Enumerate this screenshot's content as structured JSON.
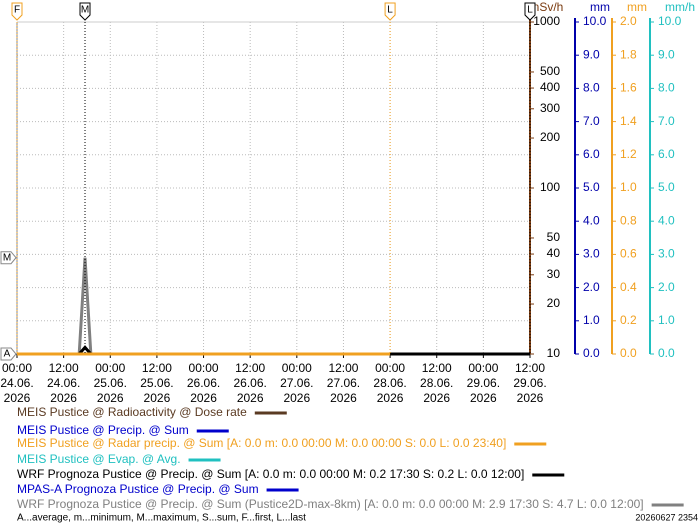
{
  "chart_data": {
    "type": "line",
    "xlim": [
      0,
      132
    ],
    "xticks": [
      {
        "value": 0,
        "label": [
          "00:00",
          "24.06.",
          "2026"
        ]
      },
      {
        "value": 12,
        "label": [
          "12:00",
          "24.06.",
          "2026"
        ]
      },
      {
        "value": 24,
        "label": [
          "00:00",
          "25.06.",
          "2026"
        ]
      },
      {
        "value": 36,
        "label": [
          "12:00",
          "25.06.",
          "2026"
        ]
      },
      {
        "value": 48,
        "label": [
          "00:00",
          "26.06.",
          "2026"
        ]
      },
      {
        "value": 60,
        "label": [
          "12:00",
          "26.06.",
          "2026"
        ]
      },
      {
        "value": 72,
        "label": [
          "00:00",
          "27.06.",
          "2026"
        ]
      },
      {
        "value": 84,
        "label": [
          "12:00",
          "27.06.",
          "2026"
        ]
      },
      {
        "value": 96,
        "label": [
          "00:00",
          "28.06.",
          "2026"
        ]
      },
      {
        "value": 108,
        "label": [
          "12:00",
          "28.06.",
          "2026"
        ]
      },
      {
        "value": 120,
        "label": [
          "00:00",
          "29.06.",
          "2026"
        ]
      },
      {
        "value": 132,
        "label": [
          "12:00",
          "29.06.",
          "2026"
        ]
      }
    ],
    "axes": [
      {
        "label": "nSv/h",
        "color": "#7a3b10",
        "scale": "log",
        "lim": [
          10,
          1000
        ],
        "ticks": [
          10,
          20,
          30,
          40,
          50,
          100,
          200,
          300,
          400,
          500,
          1000
        ]
      },
      {
        "label": "mm",
        "color": "#0000aa",
        "scale": "linear",
        "lim": [
          0,
          10
        ],
        "ticks": [
          {
            "value": 0,
            "label": "0.0"
          },
          {
            "value": 1,
            "label": "1.0"
          },
          {
            "value": 2,
            "label": "2.0"
          },
          {
            "value": 3,
            "label": "3.0"
          },
          {
            "value": 4,
            "label": "4.0"
          },
          {
            "value": 5,
            "label": "5.0"
          },
          {
            "value": 6,
            "label": "6.0"
          },
          {
            "value": 7,
            "label": "7.0"
          },
          {
            "value": 8,
            "label": "8.0"
          },
          {
            "value": 9,
            "label": "9.0"
          },
          {
            "value": 10,
            "label": "10.0"
          }
        ]
      },
      {
        "label": "mm",
        "color": "#f0a020",
        "scale": "linear",
        "lim": [
          0,
          2
        ],
        "ticks": [
          {
            "value": 0,
            "label": "0.0"
          },
          0.2,
          0.4,
          0.6,
          0.8,
          {
            "value": 1,
            "label": "1.0"
          },
          1.2,
          1.4,
          1.6,
          1.8,
          {
            "value": 2,
            "label": "2.0"
          }
        ]
      },
      {
        "label": "mm/h",
        "color": "#20c0c0",
        "scale": "linear",
        "lim": [
          0,
          10
        ],
        "ticks": [
          {
            "value": 0,
            "label": "0.0"
          },
          {
            "value": 1,
            "label": "1.0"
          },
          {
            "value": 2,
            "label": "2.0"
          },
          {
            "value": 3,
            "label": "3.0"
          },
          {
            "value": 4,
            "label": "4.0"
          },
          {
            "value": 5,
            "label": "5.0"
          },
          {
            "value": 6,
            "label": "6.0"
          },
          {
            "value": 7,
            "label": "7.0"
          },
          {
            "value": 8,
            "label": "8.0"
          },
          {
            "value": 9,
            "label": "9.0"
          },
          {
            "value": 10,
            "label": "10.0"
          }
        ]
      }
    ],
    "series": [
      {
        "name": "MEIS Pustice @ Radioactivity @ Dose rate",
        "color": "#5a3a22",
        "axis": 0,
        "x": [],
        "values": []
      },
      {
        "name": "MEIS Pustice @ Precip. @ Sum",
        "color": "#0000cc",
        "axis": 1,
        "x": [],
        "values": []
      },
      {
        "name": "MEIS Pustice @ Radar precip. @ Sum [A: 0.0 m: 0.0 00:00 M: 0.0 00:00 S: 0.0 L: 0.0 23:40]",
        "color": "#f0a020",
        "axis": 2,
        "x": [
          0,
          96
        ],
        "values": [
          0,
          0
        ]
      },
      {
        "name": "MEIS Pustice @ Evap. @ Avg.",
        "color": "#20c0c0",
        "axis": 3,
        "x": [],
        "values": []
      },
      {
        "name": "WRF Prognoza Pustice @ Precip. @ Sum [A: 0.0 m: 0.0 00:00 M: 0.2 17:30 S: 0.2 L: 0.0 12:00]",
        "color": "#000000",
        "axis": 1,
        "x": [
          0,
          16,
          17.5,
          19,
          132
        ],
        "values": [
          0,
          0,
          0.2,
          0,
          0
        ]
      },
      {
        "name": "MPAS-A Prognoza Pustice @ Precip. @ Sum",
        "color": "#0000cc",
        "axis": 1,
        "x": [],
        "values": []
      },
      {
        "name": "WRF Prognoza Pustice @ Precip. @ Sum (Pustice2D-max-8km) [A: 0.0 m: 0.0 00:00 M: 2.9 17:30 S: 4.7 L: 0.0 12:00]",
        "color": "#808080",
        "axis": 1,
        "x": [
          16,
          17.5,
          19
        ],
        "values": [
          0,
          2.9,
          0
        ]
      }
    ],
    "markers": [
      {
        "label": "F",
        "x": 0,
        "color": "#f0a020"
      },
      {
        "label": "M",
        "x": 17.5,
        "color": "#000000"
      },
      {
        "label": "L",
        "x": 96,
        "color": "#f0a020"
      },
      {
        "label": "L",
        "x": 132,
        "color": "#000000"
      }
    ],
    "side_markers": [
      {
        "label": "M",
        "y": 2.9
      },
      {
        "label": "A",
        "y": 0
      }
    ],
    "footnote": "A...average, m...minimum, M...maximum, S...sum, F...first, L...last",
    "timestamp": "20260627 2354",
    "grid": true
  }
}
